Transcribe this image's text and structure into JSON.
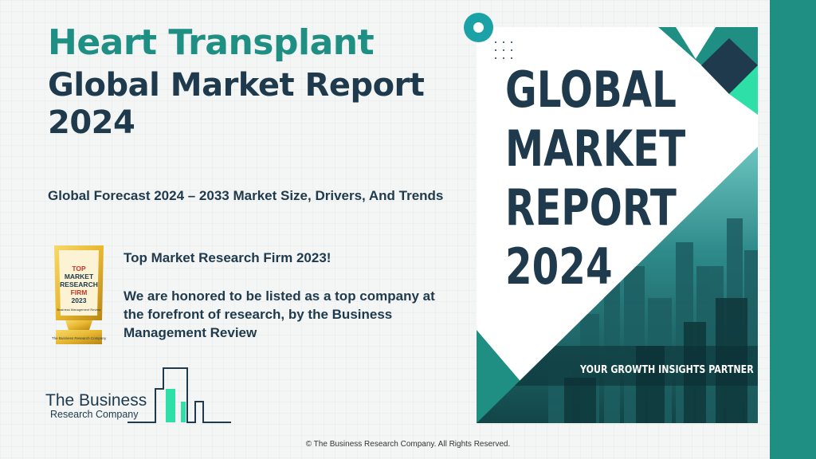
{
  "heading": {
    "line1": "Heart Transplant",
    "line2": "Global Market Report 2024"
  },
  "subtitle": "Global Forecast 2024 – 2033 Market Size, Drivers, And Trends",
  "award": {
    "badge_lines": [
      "TOP",
      "MARKET",
      "RESEARCH",
      "FIRM",
      "2023"
    ],
    "badge_small": "Business Management Review",
    "badge_base": "The Business Research Company",
    "headline": "Top Market Research Firm 2023!",
    "body": "We are honored to be listed as a top company at the forefront of research, by the Business Management Review"
  },
  "logo": {
    "line1": "The Business",
    "line2": "Research Company"
  },
  "cover": {
    "title_lines": [
      "GLOBAL",
      "MARKET",
      "REPORT",
      "2024"
    ],
    "tagline": "YOUR GROWTH INSIGHTS PARTNER"
  },
  "footer": "© The Business Research Company. All Rights Reserved.",
  "colors": {
    "teal": "#1f8f83",
    "navy": "#1e3a4c",
    "mint": "#2ee0a8",
    "gold": "#e8b730"
  }
}
